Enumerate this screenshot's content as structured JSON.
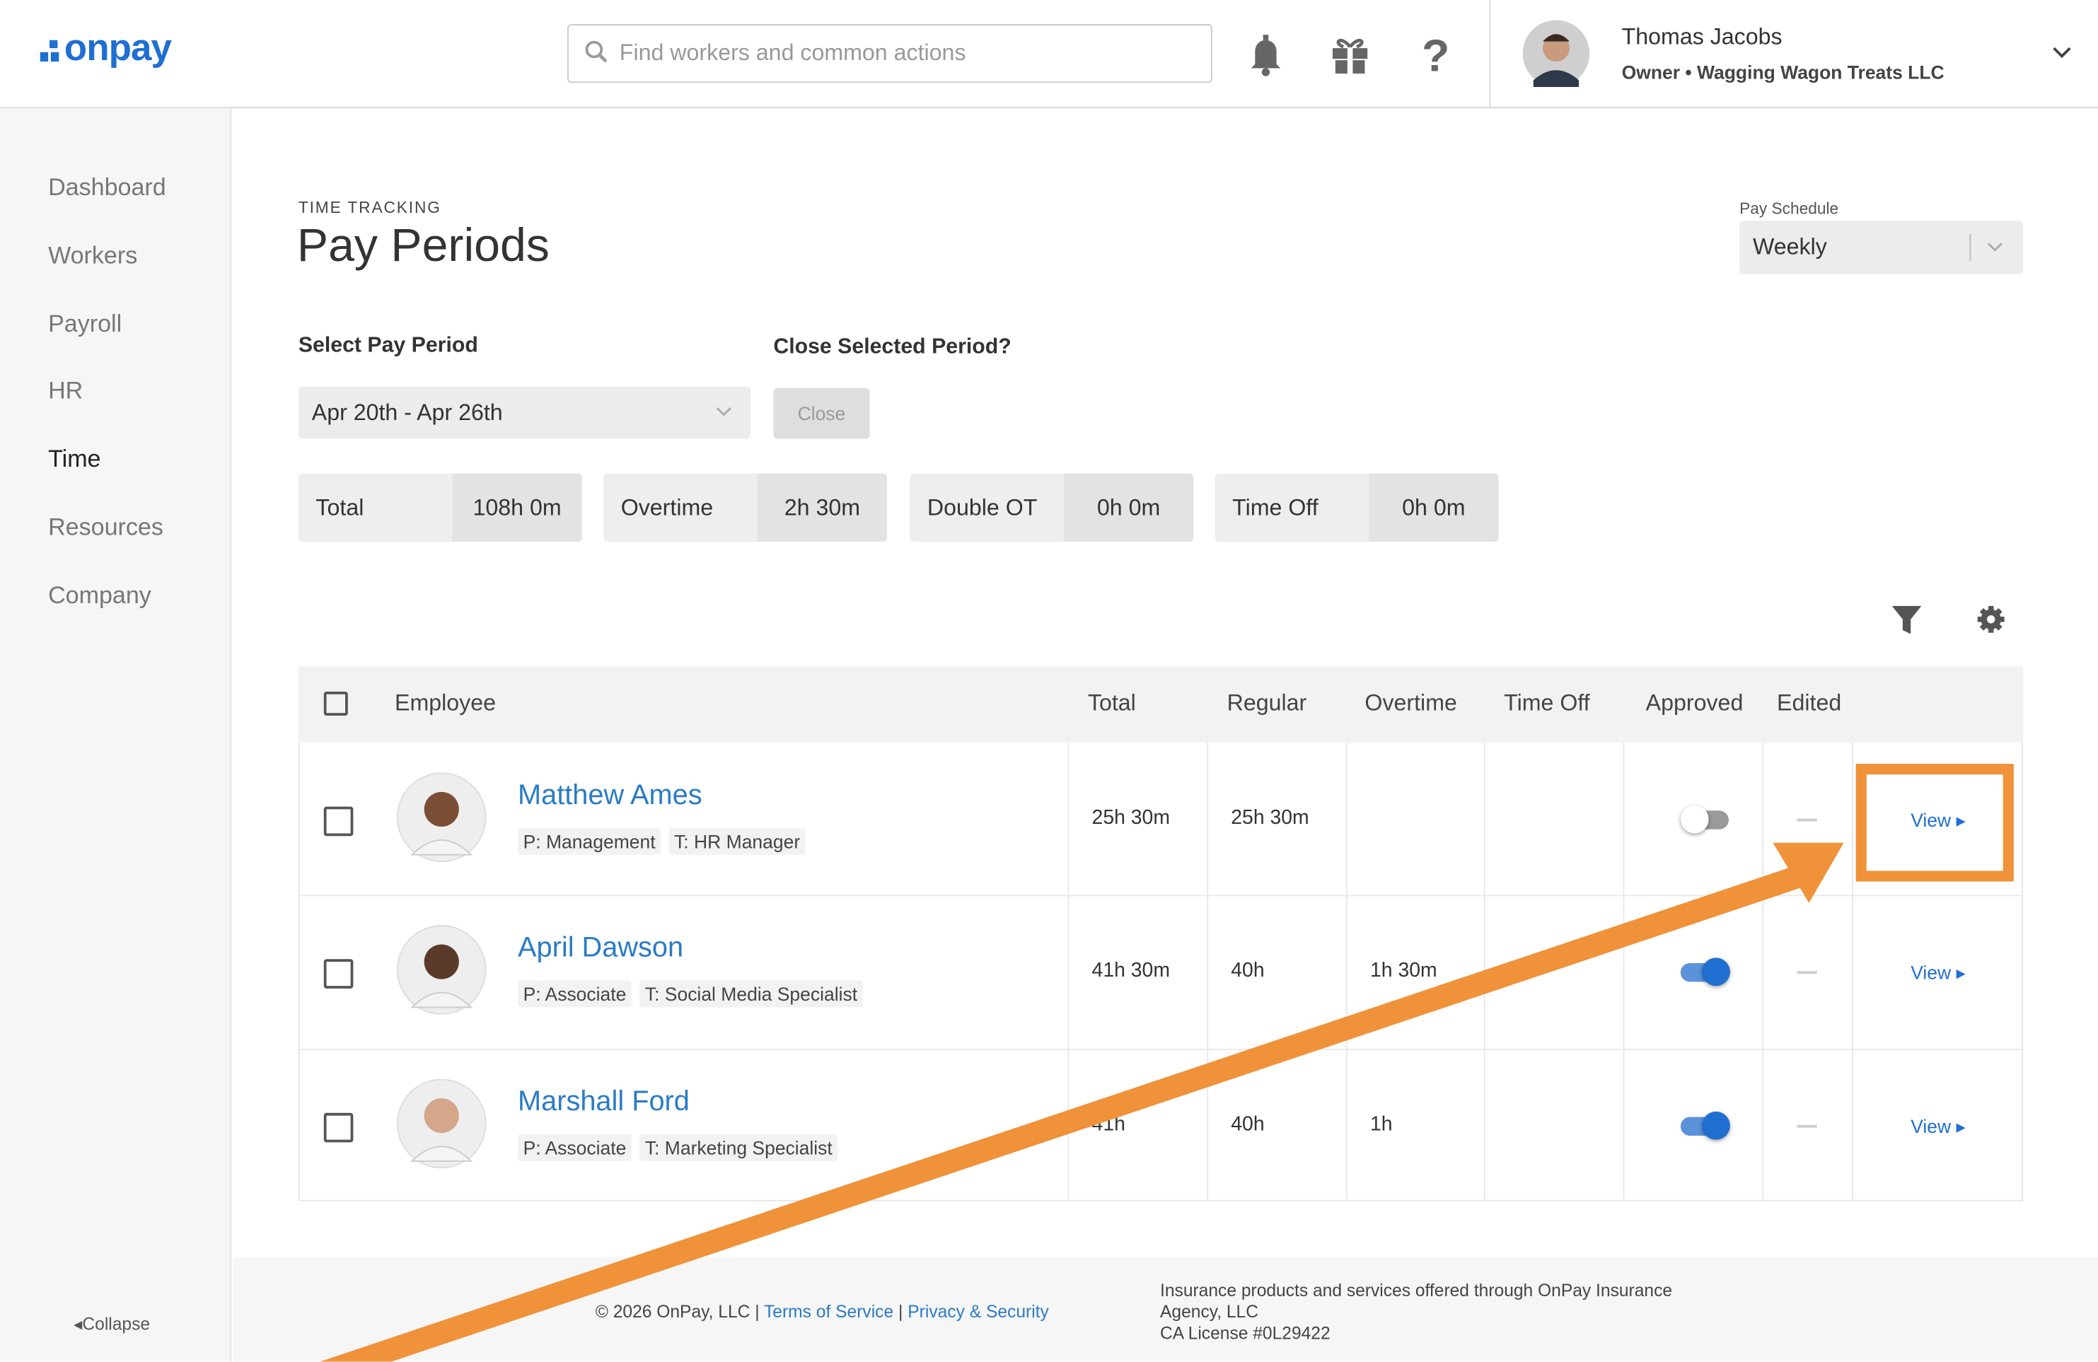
{
  "header": {
    "logo": "onpay",
    "search_placeholder": "Find workers and common actions",
    "user_name": "Thomas Jacobs",
    "user_role": "Owner • Wagging Wagon Treats LLC"
  },
  "sidebar": {
    "items": [
      "Dashboard",
      "Workers",
      "Payroll",
      "HR",
      "Time",
      "Resources",
      "Company"
    ],
    "active": "Time",
    "collapse": "Collapse"
  },
  "page": {
    "eyebrow": "TIME TRACKING",
    "title": "Pay Periods",
    "pay_schedule_label": "Pay Schedule",
    "pay_schedule": "Weekly",
    "select_label": "Select Pay Period",
    "select_value": "Apr 20th - Apr 26th",
    "close_label": "Close Selected Period?",
    "close_button": "Close"
  },
  "stats": [
    {
      "label": "Total",
      "value": "108h 0m"
    },
    {
      "label": "Overtime",
      "value": "2h 30m"
    },
    {
      "label": "Double OT",
      "value": "0h 0m"
    },
    {
      "label": "Time Off",
      "value": "0h 0m"
    }
  ],
  "table": {
    "headers": [
      "Employee",
      "Total",
      "Regular",
      "Overtime",
      "Time Off",
      "Approved",
      "Edited"
    ],
    "rows": [
      {
        "name": "Matthew Ames",
        "position": "P: Management",
        "title": "T: HR Manager",
        "total": "25h 30m",
        "regular": "25h 30m",
        "overtime": "",
        "time_off": "",
        "approved": false,
        "action": "View"
      },
      {
        "name": "April Dawson",
        "position": "P: Associate",
        "title": "T: Social Media Specialist",
        "total": "41h 30m",
        "regular": "40h",
        "overtime": "1h 30m",
        "time_off": "",
        "approved": true,
        "action": "View"
      },
      {
        "name": "Marshall Ford",
        "position": "P: Associate",
        "title": "T: Marketing Specialist",
        "total": "41h",
        "regular": "40h",
        "overtime": "1h",
        "time_off": "",
        "approved": true,
        "action": "View"
      }
    ]
  },
  "footer": {
    "copyright": "© 2026 OnPay, LLC |",
    "terms": "Terms of Service",
    "separator": "|",
    "privacy": "Privacy & Security",
    "insurance": [
      "Insurance products and services offered through OnPay Insurance",
      "Agency, LLC",
      "CA License #0L29422"
    ]
  }
}
